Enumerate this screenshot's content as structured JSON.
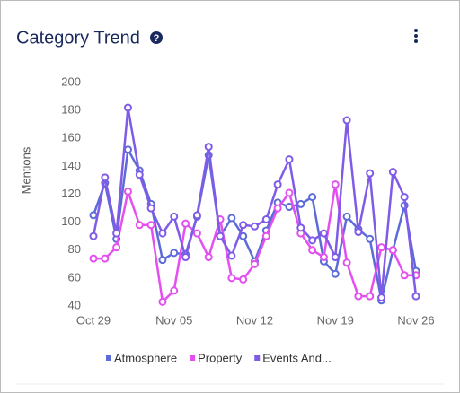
{
  "chart_data": {
    "type": "line",
    "title": "Category Trend",
    "y_label": "Mentions",
    "categories": [
      "Oct 29",
      null,
      null,
      null,
      null,
      null,
      null,
      "Nov 05",
      null,
      null,
      null,
      null,
      null,
      null,
      "Nov 12",
      null,
      null,
      null,
      null,
      null,
      null,
      "Nov 19",
      null,
      null,
      null,
      null,
      null,
      null,
      "Nov 26"
    ],
    "ylim": [
      40,
      200
    ],
    "yticks": [
      40,
      60,
      80,
      100,
      120,
      140,
      160,
      180,
      200
    ],
    "legend": "bottom",
    "series": [
      {
        "name": "Atmosphere",
        "color": "#5c6bd8",
        "values": [
          105,
          128,
          88,
          152,
          137,
          113,
          73,
          78,
          77,
          104,
          148,
          90,
          103,
          90,
          72,
          94,
          114,
          111,
          113,
          118,
          72,
          63,
          104,
          95,
          88,
          44,
          80,
          112,
          65
        ]
      },
      {
        "name": "Property",
        "color": "#e44ff0",
        "values": [
          74,
          74,
          82,
          122,
          98,
          98,
          43,
          51,
          99,
          92,
          75,
          102,
          60,
          59,
          70,
          90,
          110,
          121,
          92,
          80,
          75,
          127,
          71,
          47,
          47,
          82,
          80,
          62,
          62
        ]
      },
      {
        "name": "Events And...",
        "color": "#7f5be8",
        "values": [
          90,
          132,
          92,
          182,
          134,
          110,
          92,
          104,
          75,
          105,
          154,
          90,
          76,
          98,
          97,
          102,
          127,
          145,
          96,
          87,
          92,
          75,
          173,
          93,
          135,
          46,
          136,
          118,
          47
        ]
      }
    ]
  }
}
